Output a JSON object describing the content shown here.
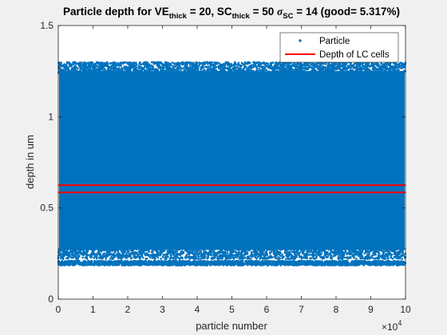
{
  "figure": {
    "background": "#f0f0f0",
    "axes_background": "#ffffff"
  },
  "chart_data": {
    "type": "scatter",
    "title_parts": {
      "a": "Particle depth for VE",
      "sub1": "thick",
      "b": " = 20, SC",
      "sub2": "thick",
      "c": " = 50 ",
      "sigma": "σ",
      "sub3": "SC",
      "d": " = 14 (good= 5.317%)"
    },
    "xlabel": "particle number",
    "ylabel": "depth in um",
    "x_exponent_label": "×10",
    "x_exponent": "4",
    "xlim": [
      0,
      100000
    ],
    "ylim": [
      0,
      1.5
    ],
    "xticks": [
      0,
      1,
      2,
      3,
      4,
      5,
      6,
      7,
      8,
      9,
      10
    ],
    "yticks": [
      {
        "value": 0,
        "label": "0"
      },
      {
        "value": 0.5,
        "label": "0.5"
      },
      {
        "value": 1,
        "label": "1"
      },
      {
        "value": 1.5,
        "label": "1.5"
      }
    ],
    "series": [
      {
        "name": "Particle",
        "kind": "scatter",
        "color": "#0072BD",
        "n_points": 100000,
        "y_range": [
          0.19,
          1.3
        ]
      },
      {
        "name": "Depth of LC cells",
        "kind": "hline",
        "color": "#ff0000",
        "y_values": [
          0.585,
          0.625
        ]
      }
    ],
    "legend_position": "top-right",
    "grid": false
  }
}
